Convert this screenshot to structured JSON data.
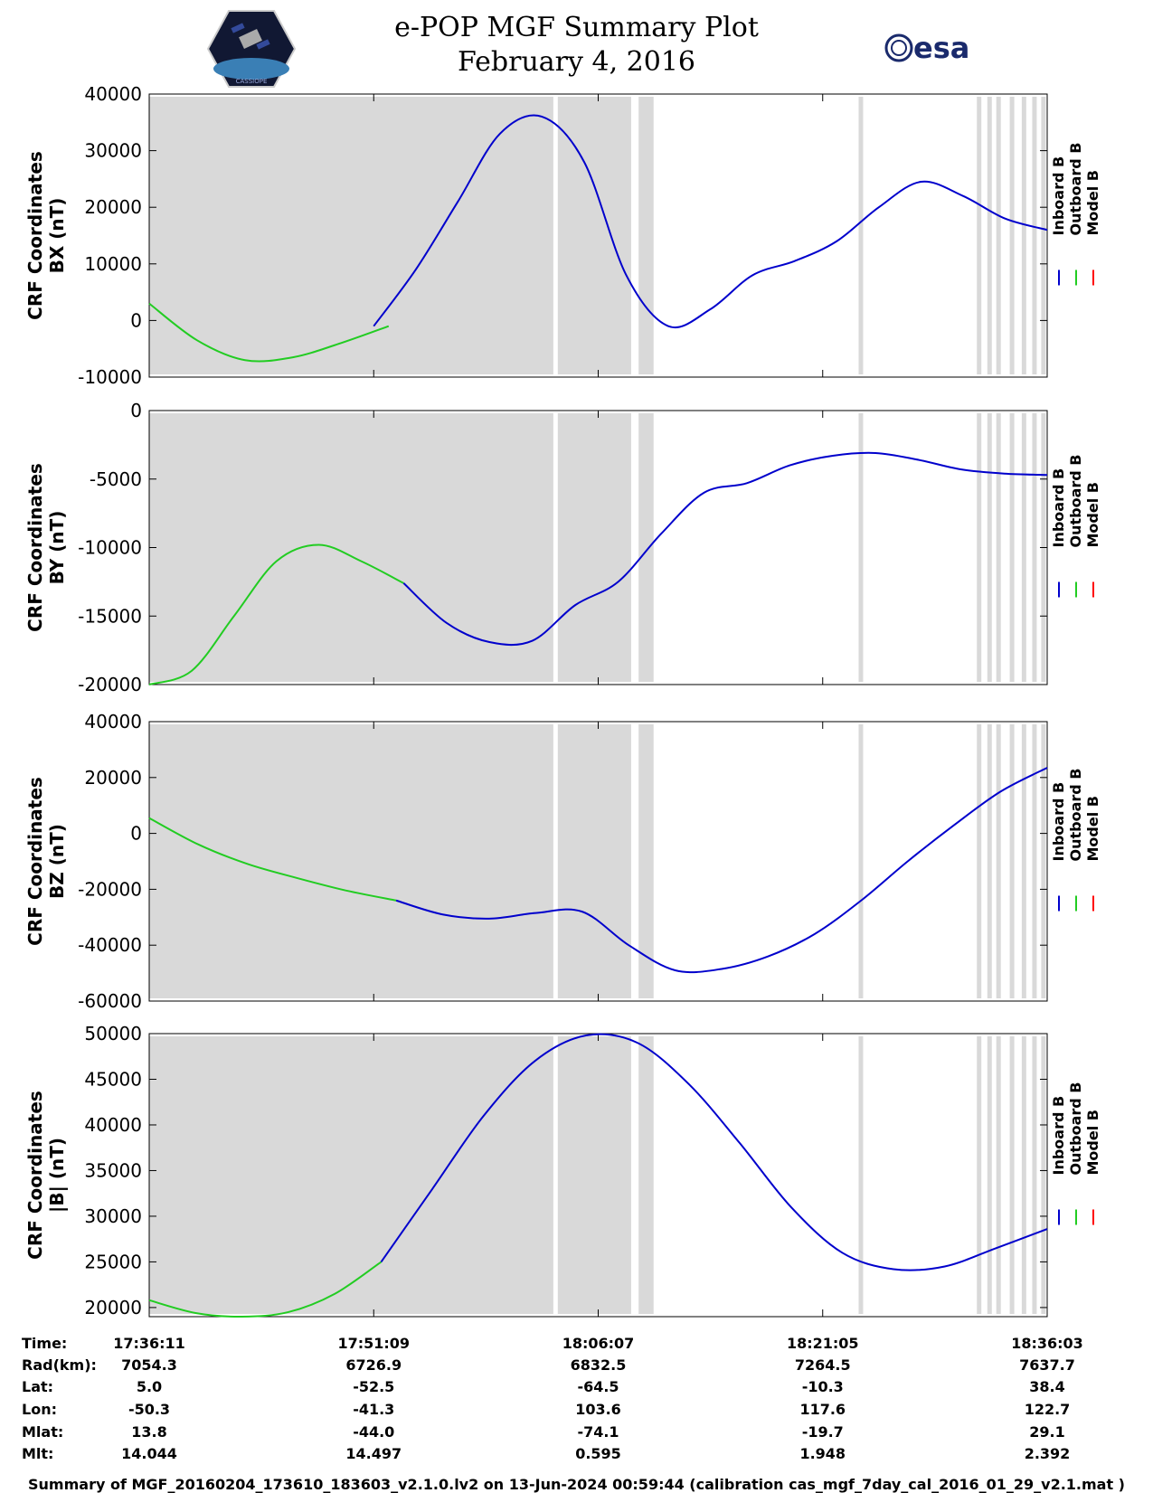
{
  "header": {
    "title_line1": "e-POP MGF Summary Plot",
    "title_line2": "February 4, 2016",
    "left_logo_text": "CASSIOPE",
    "right_logo_text": "esa"
  },
  "legend": [
    {
      "name": "Inboard B",
      "color": "#0000cc"
    },
    {
      "name": "Outboard B",
      "color": "#22cc22"
    },
    {
      "name": "Model B",
      "color": "#ff0000"
    }
  ],
  "chart_data": [
    {
      "type": "line",
      "ylabel_line1": "CRF Coordinates",
      "ylabel_line2": "BX (nT)",
      "ylim": [
        -10000,
        40000
      ],
      "yticks": [
        -10000,
        0,
        10000,
        20000,
        30000,
        40000
      ],
      "x_minutes": [
        0,
        3,
        6,
        9,
        12,
        15,
        18,
        21,
        24,
        27,
        28.5,
        30,
        31,
        32,
        33,
        34,
        36,
        38,
        42,
        48,
        54,
        58,
        60
      ],
      "series": [
        {
          "name": "Outboard B",
          "color": "#22cc22",
          "range": [
            0,
            16
          ],
          "values": [
            3000,
            -3500,
            -7000,
            -6500,
            -4000,
            -1000
          ]
        },
        {
          "name": "Inboard B",
          "color": "#0000cc",
          "range": [
            15,
            60
          ],
          "values": [
            -1000,
            9000,
            21000,
            33000,
            36000,
            28000,
            8000,
            -1000,
            2000,
            8000,
            10500,
            14000,
            20000,
            24500,
            22000,
            18000,
            16000
          ]
        }
      ]
    },
    {
      "type": "line",
      "ylabel_line1": "CRF Coordinates",
      "ylabel_line2": "BY (nT)",
      "ylim": [
        -20000,
        0
      ],
      "yticks": [
        -20000,
        -15000,
        -10000,
        -5000,
        0
      ],
      "series": [
        {
          "name": "Outboard B",
          "color": "#22cc22",
          "range": [
            0,
            17
          ],
          "values": [
            -20000,
            -19000,
            -15000,
            -11000,
            -9800,
            -11000,
            -12600
          ]
        },
        {
          "name": "Inboard B",
          "color": "#0000cc",
          "range": [
            17,
            60
          ],
          "values": [
            -12600,
            -15500,
            -16900,
            -16800,
            -14200,
            -12500,
            -9000,
            -6000,
            -5300,
            -4000,
            -3300,
            -3100,
            -3600,
            -4300,
            -4600,
            -4700
          ]
        }
      ]
    },
    {
      "type": "line",
      "ylabel_line1": "CRF Coordinates",
      "ylabel_line2": "BZ (nT)",
      "ylim": [
        -60000,
        40000
      ],
      "yticks": [
        -60000,
        -40000,
        -20000,
        0,
        20000,
        40000
      ],
      "series": [
        {
          "name": "Outboard B",
          "color": "#22cc22",
          "range": [
            0,
            16.5
          ],
          "values": [
            5500,
            -4000,
            -11000,
            -16000,
            -20500,
            -24000
          ]
        },
        {
          "name": "Inboard B",
          "color": "#0000cc",
          "range": [
            16.5,
            60
          ],
          "values": [
            -24000,
            -29000,
            -30500,
            -28500,
            -28000,
            -40000,
            -49000,
            -48500,
            -44000,
            -36000,
            -24000,
            -10000,
            3000,
            15000,
            23500
          ]
        }
      ]
    },
    {
      "type": "line",
      "ylabel_line1": "CRF Coordinates",
      "ylabel_line2": "|B| (nT)",
      "ylim": [
        19000,
        50000
      ],
      "yticks": [
        20000,
        25000,
        30000,
        35000,
        40000,
        45000,
        50000
      ],
      "series": [
        {
          "name": "Outboard B",
          "color": "#22cc22",
          "range": [
            0,
            15.5
          ],
          "values": [
            20800,
            19400,
            19000,
            19500,
            21500,
            25000
          ]
        },
        {
          "name": "Inboard B",
          "color": "#0000cc",
          "range": [
            15.5,
            60
          ],
          "values": [
            25000,
            33000,
            41000,
            47000,
            49800,
            49000,
            44500,
            38000,
            31000,
            26000,
            24200,
            24500,
            26500,
            28600
          ]
        }
      ]
    }
  ],
  "gray_intervals_minutes": [
    [
      0,
      27
    ],
    [
      27.3,
      32.2
    ],
    [
      32.7,
      33.7
    ],
    [
      47.4,
      47.7
    ],
    [
      55.3,
      55.6
    ],
    [
      56.0,
      56.3
    ],
    [
      56.6,
      56.9
    ],
    [
      57.5,
      57.8
    ],
    [
      58.3,
      58.6
    ],
    [
      59.0,
      59.3
    ],
    [
      59.6,
      59.9
    ]
  ],
  "table": {
    "row_labels": [
      "Time:",
      "Rad(km):",
      "Lat:",
      "Lon:",
      "Mlat:",
      "Mlt:"
    ],
    "columns": [
      [
        "17:36:11",
        "7054.3",
        "5.0",
        "-50.3",
        "13.8",
        "14.044"
      ],
      [
        "17:51:09",
        "6726.9",
        "-52.5",
        "-41.3",
        "-44.0",
        "14.497"
      ],
      [
        "18:06:07",
        "6832.5",
        "-64.5",
        "103.6",
        "-74.1",
        "0.595"
      ],
      [
        "18:21:05",
        "7264.5",
        "-10.3",
        "117.6",
        "-19.7",
        "1.948"
      ],
      [
        "18:36:03",
        "7637.7",
        "38.4",
        "122.7",
        "29.1",
        "2.392"
      ]
    ]
  },
  "footer": "Summary of MGF_20160204_173610_183603_v2.1.0.lv2 on 13-Jun-2024 00:59:44 (calibration cas_mgf_7day_cal_2016_01_29_v2.1.mat )"
}
